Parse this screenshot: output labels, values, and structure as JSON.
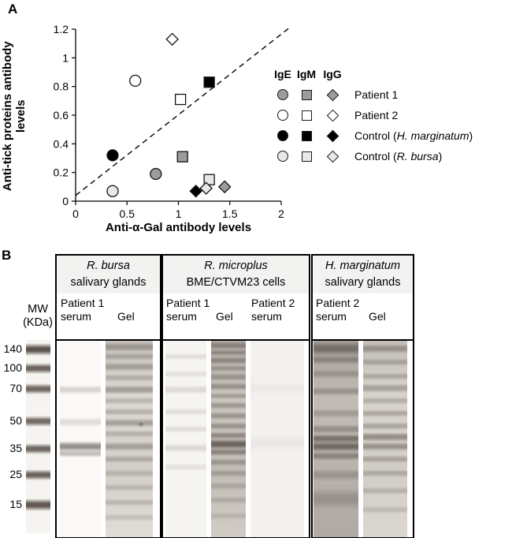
{
  "figure": {
    "panel_a_label": "A",
    "panel_b_label": "B"
  },
  "chart_data": {
    "type": "scatter",
    "title": "",
    "xlabel": "Anti-α-Gal antibody levels",
    "ylabel": "Anti-tick proteins antibody levels",
    "xlim": [
      0,
      2
    ],
    "ylim": [
      0,
      1.2
    ],
    "xticks": [
      "0",
      "0.5",
      "1",
      "1.5",
      "2"
    ],
    "yticks": [
      "0",
      "0.2",
      "0.4",
      "0.6",
      "0.8",
      "1",
      "1.2"
    ],
    "diagonal_line": {
      "x1": 0,
      "y1": 0.04,
      "x2": 2.08,
      "y2": 1.21,
      "style": "dashed"
    },
    "legend": {
      "position": "right",
      "columns": [
        "IgE",
        "IgM",
        "IgG"
      ],
      "rows": [
        {
          "label_pre": "Patient 1",
          "label_italic": "",
          "label_post": "",
          "fill": "#9c9c9c"
        },
        {
          "label_pre": "Patient 2",
          "label_italic": "",
          "label_post": "",
          "fill": "#ffffff"
        },
        {
          "label_pre": "Control (",
          "label_italic": "H. marginatum",
          "label_post": ")",
          "fill": "#000000"
        },
        {
          "label_pre": "Control (",
          "label_italic": "R. bursa",
          "label_post": ")",
          "fill": "#e8e8e8"
        }
      ]
    },
    "series": [
      {
        "name": "Patient 1",
        "fill": "#9c9c9c",
        "points": [
          {
            "shape": "circle",
            "x": 0.78,
            "y": 0.19
          },
          {
            "shape": "square",
            "x": 1.04,
            "y": 0.31
          },
          {
            "shape": "diamond",
            "x": 1.45,
            "y": 0.1
          }
        ]
      },
      {
        "name": "Patient 2",
        "fill": "#ffffff",
        "points": [
          {
            "shape": "circle",
            "x": 0.58,
            "y": 0.84
          },
          {
            "shape": "square",
            "x": 1.02,
            "y": 0.71
          },
          {
            "shape": "diamond",
            "x": 0.94,
            "y": 1.13
          }
        ]
      },
      {
        "name": "Control (H. marginatum)",
        "fill": "#000000",
        "points": [
          {
            "shape": "circle",
            "x": 0.36,
            "y": 0.32
          },
          {
            "shape": "square",
            "x": 1.3,
            "y": 0.83
          },
          {
            "shape": "diamond",
            "x": 1.17,
            "y": 0.07
          }
        ]
      },
      {
        "name": "Control (R. bursa)",
        "fill": "#e8e8e8",
        "points": [
          {
            "shape": "circle",
            "x": 0.36,
            "y": 0.07
          },
          {
            "shape": "square",
            "x": 1.3,
            "y": 0.15
          },
          {
            "shape": "diamond",
            "x": 1.27,
            "y": 0.09
          }
        ]
      }
    ]
  },
  "panel_b": {
    "mw_line1": "MW",
    "mw_line2": "(KDa)",
    "mw_ticks": [
      "140",
      "100",
      "70",
      "50",
      "35",
      "25",
      "15"
    ],
    "groups": [
      {
        "species": "R. bursa",
        "tissue": "salivary glands",
        "lane1_line1": "Patient 1",
        "lane1_line2": "serum",
        "lane2": "Gel"
      },
      {
        "species": "R. microplus",
        "tissue": "BME/CTVM23 cells",
        "lane1_line1": "Patient 1",
        "lane1_line2": "serum",
        "lane2": "Gel",
        "lane3_line1": "Patient 2",
        "lane3_line2": "serum"
      },
      {
        "species": "H. marginatum",
        "tissue": "salivary glands",
        "lane1_line1": "Patient 2",
        "lane1_line2": "serum",
        "lane2": "Gel"
      }
    ]
  }
}
